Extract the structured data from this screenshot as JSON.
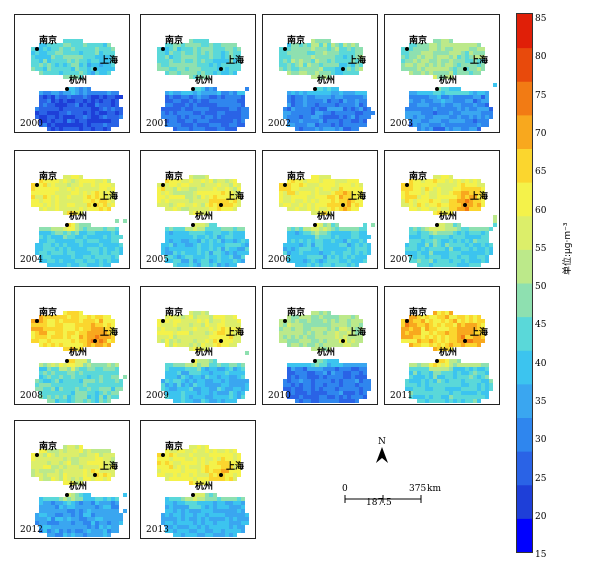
{
  "legend": {
    "ticks": [
      "85",
      "80",
      "75",
      "70",
      "65",
      "60",
      "55",
      "50",
      "45",
      "40",
      "35",
      "30",
      "25",
      "20",
      "15"
    ],
    "unit": "单位:μg·m⁻³",
    "colors": [
      "#0000ff",
      "#1e3fd8",
      "#2a63e6",
      "#2f86ee",
      "#3aa6f0",
      "#3cc4ef",
      "#5ad8d9",
      "#8ee0b0",
      "#bce98a",
      "#dcee6a",
      "#f4f24a",
      "#fbd62e",
      "#f8a81e",
      "#f27b14",
      "#e84a0c",
      "#e01f08"
    ]
  },
  "cities": {
    "nanjing": "南京",
    "shanghai": "上海",
    "hangzhou": "杭州"
  },
  "panels": [
    {
      "year": "2000",
      "north": 0.42,
      "nanjing": 0.3,
      "shanghai": 0.3,
      "south": 0.12
    },
    {
      "year": "2001",
      "north": 0.44,
      "nanjing": 0.34,
      "shanghai": 0.34,
      "south": 0.16
    },
    {
      "year": "2002",
      "north": 0.47,
      "nanjing": 0.38,
      "shanghai": 0.36,
      "south": 0.2
    },
    {
      "year": "2003",
      "north": 0.5,
      "nanjing": 0.42,
      "shanghai": 0.4,
      "south": 0.22
    },
    {
      "year": "2004",
      "north": 0.62,
      "nanjing": 0.75,
      "shanghai": 0.72,
      "south": 0.36
    },
    {
      "year": "2005",
      "north": 0.6,
      "nanjing": 0.68,
      "shanghai": 0.74,
      "south": 0.34
    },
    {
      "year": "2006",
      "north": 0.63,
      "nanjing": 0.7,
      "shanghai": 0.8,
      "south": 0.35
    },
    {
      "year": "2007",
      "north": 0.65,
      "nanjing": 0.72,
      "shanghai": 0.88,
      "south": 0.38
    },
    {
      "year": "2008",
      "north": 0.7,
      "nanjing": 0.8,
      "shanghai": 0.85,
      "south": 0.42
    },
    {
      "year": "2009",
      "north": 0.6,
      "nanjing": 0.66,
      "shanghai": 0.72,
      "south": 0.32
    },
    {
      "year": "2010",
      "north": 0.5,
      "nanjing": 0.55,
      "shanghai": 0.62,
      "south": 0.18
    },
    {
      "year": "2011",
      "north": 0.72,
      "nanjing": 0.84,
      "shanghai": 0.82,
      "south": 0.38
    },
    {
      "year": "2012",
      "north": 0.58,
      "nanjing": 0.62,
      "shanghai": 0.7,
      "south": 0.26
    },
    {
      "year": "2013",
      "north": 0.64,
      "nanjing": 0.72,
      "shanghai": 0.74,
      "south": 0.3
    }
  ],
  "north_arrow": "N",
  "scale": {
    "labels": [
      "0",
      "187.5",
      "375"
    ],
    "unit": "km"
  }
}
